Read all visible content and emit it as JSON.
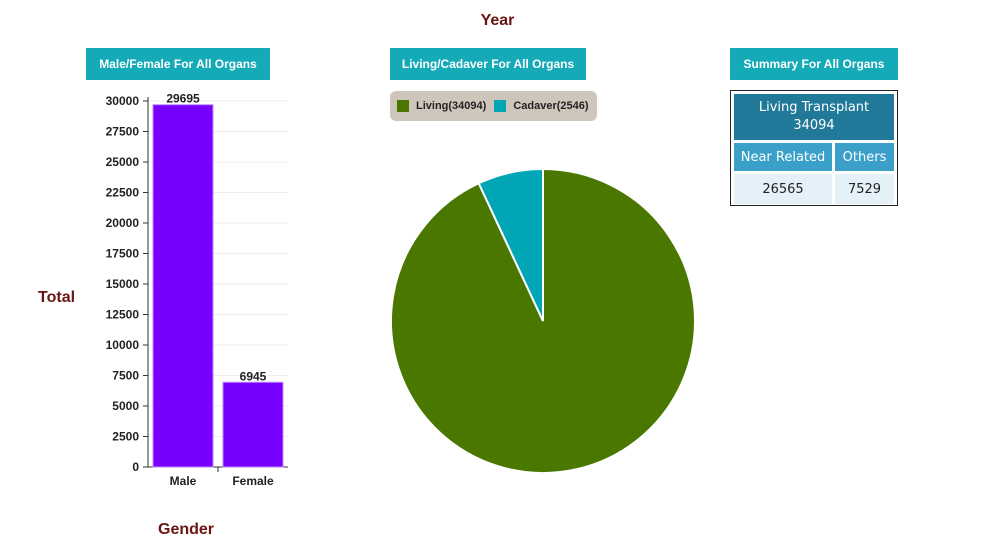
{
  "page_title": "Year",
  "panels": {
    "gender": "Male/Female For All Organs",
    "living": "Living/Cadaver For All Organs",
    "summary": "Summary For All Organs"
  },
  "chart_data": [
    {
      "type": "bar",
      "categories": [
        "Male",
        "Female"
      ],
      "values": [
        29695,
        6945
      ],
      "data_labels": [
        "29695",
        "6945"
      ],
      "xlabel": "Gender",
      "ylabel": "Total",
      "ylim": [
        0,
        30000
      ],
      "yticks": [
        0,
        2500,
        5000,
        7500,
        10000,
        12500,
        15000,
        17500,
        20000,
        22500,
        25000,
        27500,
        30000
      ],
      "grid": true,
      "color": "#7700ff"
    },
    {
      "type": "pie",
      "slices": [
        {
          "label": "Living(34094)",
          "value": 34094,
          "color": "#4a7700"
        },
        {
          "label": "Cadaver(2546)",
          "value": 2546,
          "color": "#00a6b6"
        }
      ],
      "legend_placement": "top-left"
    }
  ],
  "summary": {
    "top_label": "Living Transplant",
    "top_value": "34094",
    "col1_label": "Near Related",
    "col2_label": "Others",
    "col1_value": "26565",
    "col2_value": "7529"
  }
}
